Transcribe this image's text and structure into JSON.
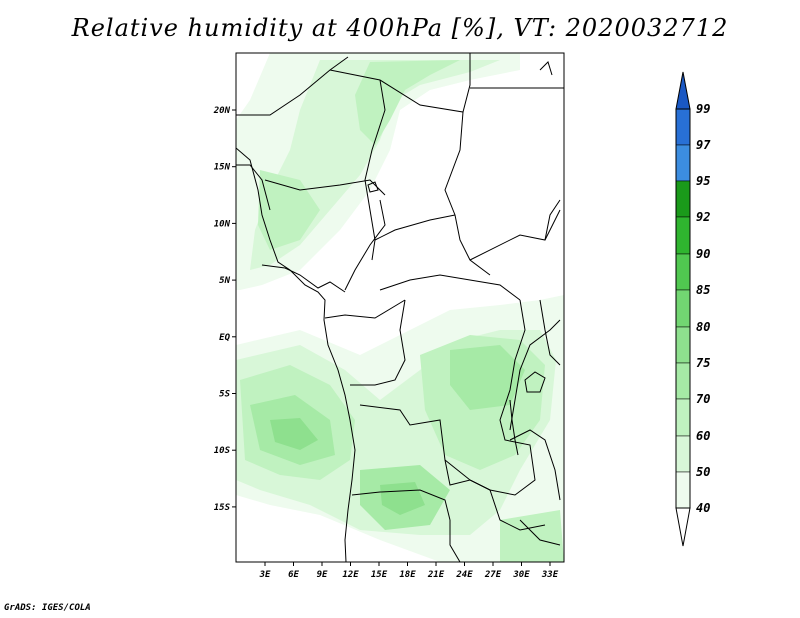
{
  "title": "Relative humidity at 400hPa [%], VT: 2020032712",
  "credit": "GrADS: IGES/COLA",
  "map": {
    "lon_ticks": [
      "3E",
      "6E",
      "9E",
      "12E",
      "15E",
      "18E",
      "21E",
      "24E",
      "27E",
      "30E",
      "33E"
    ],
    "lat_ticks": [
      "20N",
      "15N",
      "10N",
      "5N",
      "EQ",
      "5S",
      "10S",
      "15S"
    ]
  },
  "colorbar": {
    "levels": [
      "99",
      "97",
      "95",
      "92",
      "90",
      "85",
      "80",
      "75",
      "70",
      "60",
      "50",
      "40"
    ],
    "colors": {
      "below_40": "#ffffff",
      "40_50": "#eefbee",
      "50_60": "#d8f7d8",
      "60_70": "#c0f2c0",
      "70_75": "#a6eaa6",
      "75_80": "#8ee08e",
      "80_85": "#72d672",
      "85_90": "#50c850",
      "90_92": "#2fb52f",
      "92_95": "#1a9a1a",
      "95_97": "#3c8de0",
      "97_99": "#2870d6",
      "above_99": "#1a58c4"
    }
  }
}
